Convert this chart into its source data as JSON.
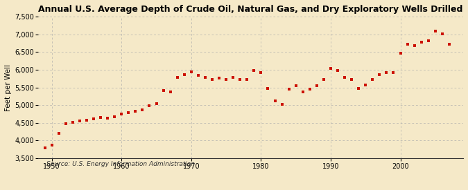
{
  "title": "Annual U.S. Average Depth of Crude Oil, Natural Gas, and Dry Exploratory Wells Drilled",
  "ylabel": "Feet per Well",
  "source": "Source: U.S. Energy Information Administration",
  "background_color": "#f5e9c8",
  "marker_color": "#cc1100",
  "years": [
    1949,
    1950,
    1951,
    1952,
    1953,
    1954,
    1955,
    1956,
    1957,
    1958,
    1959,
    1960,
    1961,
    1962,
    1963,
    1964,
    1965,
    1966,
    1967,
    1968,
    1969,
    1970,
    1971,
    1972,
    1973,
    1974,
    1975,
    1976,
    1977,
    1978,
    1979,
    1980,
    1981,
    1982,
    1983,
    1984,
    1985,
    1986,
    1987,
    1988,
    1989,
    1990,
    1991,
    1992,
    1993,
    1994,
    1995,
    1996,
    1997,
    1998,
    1999,
    2000,
    2001,
    2002,
    2003,
    2004,
    2005,
    2006,
    2007
  ],
  "values": [
    3800,
    3880,
    4200,
    4480,
    4520,
    4560,
    4580,
    4620,
    4650,
    4630,
    4680,
    4740,
    4780,
    4820,
    4870,
    4980,
    5050,
    5420,
    5380,
    5780,
    5870,
    5930,
    5840,
    5780,
    5730,
    5770,
    5730,
    5780,
    5730,
    5730,
    5980,
    5920,
    5480,
    5120,
    5020,
    5460,
    5540,
    5380,
    5460,
    5550,
    5720,
    6030,
    5980,
    5780,
    5720,
    5470,
    5570,
    5720,
    5870,
    5920,
    5910,
    6470,
    6720,
    6670,
    6770,
    6820,
    7080,
    7020,
    6720
  ],
  "ylim": [
    3500,
    7500
  ],
  "yticks": [
    3500,
    4000,
    4500,
    5000,
    5500,
    6000,
    6500,
    7000,
    7500
  ],
  "xlim": [
    1948,
    2009
  ],
  "xticks": [
    1950,
    1960,
    1970,
    1980,
    1990,
    2000
  ]
}
